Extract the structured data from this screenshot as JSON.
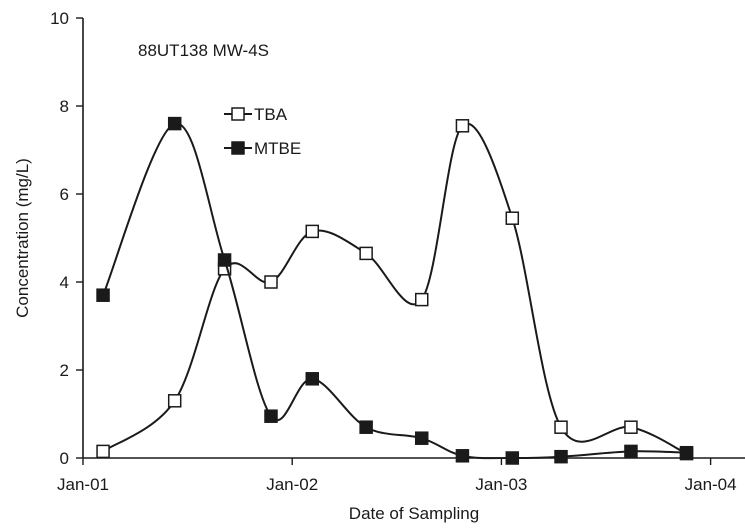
{
  "chart_data": {
    "type": "line",
    "annotation": "88UT138 MW-4S",
    "xlabel": "Date of Sampling",
    "ylabel": "Concentration (mg/L)",
    "ylim": [
      0,
      10
    ],
    "xlim": [
      "2001-01-01",
      "2004-03-01"
    ],
    "x_ticks": [
      {
        "date": "2001-01-01",
        "label": "Jan-01"
      },
      {
        "date": "2002-01-01",
        "label": "Jan-02"
      },
      {
        "date": "2003-01-01",
        "label": "Jan-03"
      },
      {
        "date": "2004-01-01",
        "label": "Jan-04"
      }
    ],
    "y_ticks": [
      0,
      2,
      4,
      6,
      8,
      10
    ],
    "grid": false,
    "legend_position": "upper-center",
    "series": [
      {
        "name": "TBA",
        "marker": "open-square",
        "color": "#1a1a1a",
        "points": [
          {
            "x": "2001-02-05",
            "y": 0.15
          },
          {
            "x": "2001-06-10",
            "y": 1.3
          },
          {
            "x": "2001-09-05",
            "y": 4.3
          },
          {
            "x": "2001-11-25",
            "y": 4.0
          },
          {
            "x": "2002-02-05",
            "y": 5.15
          },
          {
            "x": "2002-05-10",
            "y": 4.65
          },
          {
            "x": "2002-08-15",
            "y": 3.6
          },
          {
            "x": "2002-10-25",
            "y": 7.55
          },
          {
            "x": "2003-01-20",
            "y": 5.45
          },
          {
            "x": "2003-04-15",
            "y": 0.7
          },
          {
            "x": "2003-08-15",
            "y": 0.7
          },
          {
            "x": "2003-11-20",
            "y": 0.1
          }
        ]
      },
      {
        "name": "MTBE",
        "marker": "filled-square",
        "color": "#1a1a1a",
        "points": [
          {
            "x": "2001-02-05",
            "y": 3.7
          },
          {
            "x": "2001-06-10",
            "y": 7.6
          },
          {
            "x": "2001-09-05",
            "y": 4.5
          },
          {
            "x": "2001-11-25",
            "y": 0.95
          },
          {
            "x": "2002-02-05",
            "y": 1.8
          },
          {
            "x": "2002-05-10",
            "y": 0.7
          },
          {
            "x": "2002-08-15",
            "y": 0.45
          },
          {
            "x": "2002-10-25",
            "y": 0.05
          },
          {
            "x": "2003-01-20",
            "y": 0.0
          },
          {
            "x": "2003-04-15",
            "y": 0.03
          },
          {
            "x": "2003-08-15",
            "y": 0.15
          },
          {
            "x": "2003-11-20",
            "y": 0.12
          }
        ]
      }
    ]
  }
}
